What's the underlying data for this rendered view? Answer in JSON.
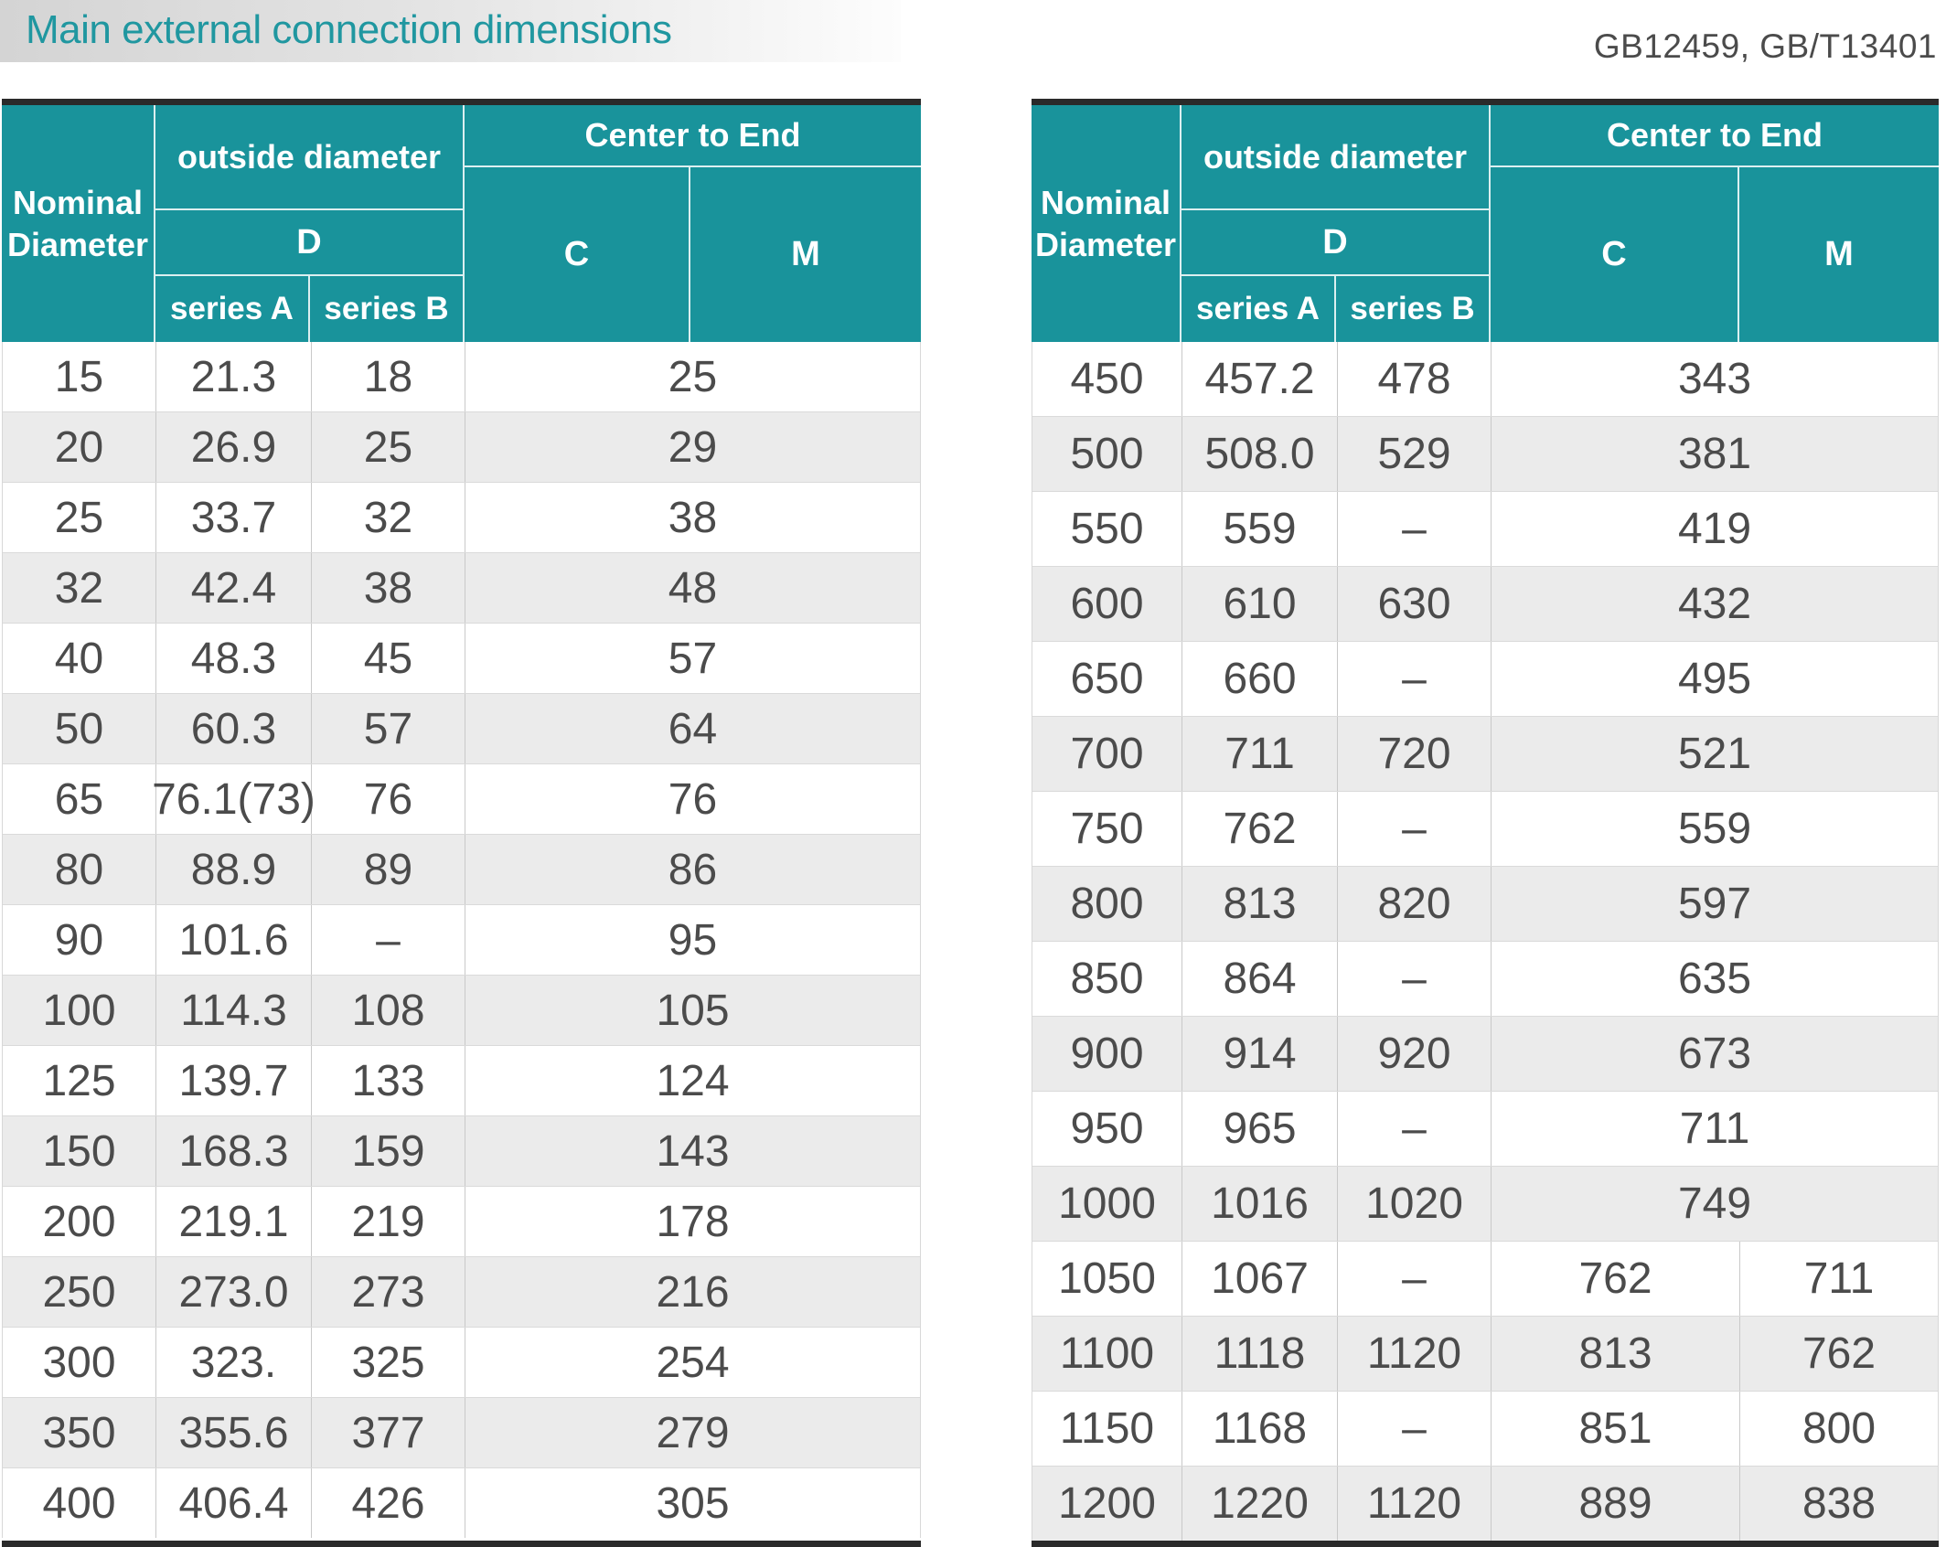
{
  "page": {
    "title": "Main external connection dimensions",
    "standards": "GB12459, GB/T13401"
  },
  "colors": {
    "header_teal": "#19939B",
    "title_teal": "#2097A0",
    "row_alt_gray": "#EBEBEB",
    "table_border_dark": "#2A2A2A",
    "data_text": "#4B4B4B"
  },
  "table_header": {
    "nominal_diameter": "Nominal Diameter",
    "outside_diameter": "outside diameter",
    "d": "D",
    "series_a": "series A",
    "series_b": "series B",
    "center_to_end": "Center to End",
    "c": "C",
    "m": "M"
  },
  "tables": [
    {
      "name": "left",
      "rows": [
        {
          "nd": "15",
          "a": "21.3",
          "b": "18",
          "cm": "25"
        },
        {
          "nd": "20",
          "a": "26.9",
          "b": "25",
          "cm": "29"
        },
        {
          "nd": "25",
          "a": "33.7",
          "b": "32",
          "cm": "38"
        },
        {
          "nd": "32",
          "a": "42.4",
          "b": "38",
          "cm": "48"
        },
        {
          "nd": "40",
          "a": "48.3",
          "b": "45",
          "cm": "57"
        },
        {
          "nd": "50",
          "a": "60.3",
          "b": "57",
          "cm": "64"
        },
        {
          "nd": "65",
          "a": "76.1(73)",
          "b": "76",
          "cm": "76"
        },
        {
          "nd": "80",
          "a": "88.9",
          "b": "89",
          "cm": "86"
        },
        {
          "nd": "90",
          "a": "101.6",
          "b": "–",
          "cm": "95"
        },
        {
          "nd": "100",
          "a": "114.3",
          "b": "108",
          "cm": "105"
        },
        {
          "nd": "125",
          "a": "139.7",
          "b": "133",
          "cm": "124"
        },
        {
          "nd": "150",
          "a": "168.3",
          "b": "159",
          "cm": "143"
        },
        {
          "nd": "200",
          "a": "219.1",
          "b": "219",
          "cm": "178"
        },
        {
          "nd": "250",
          "a": "273.0",
          "b": "273",
          "cm": "216"
        },
        {
          "nd": "300",
          "a": "323.",
          "b": "325",
          "cm": "254"
        },
        {
          "nd": "350",
          "a": "355.6",
          "b": "377",
          "cm": "279"
        },
        {
          "nd": "400",
          "a": "406.4",
          "b": "426",
          "cm": "305"
        }
      ]
    },
    {
      "name": "right",
      "rows": [
        {
          "nd": "450",
          "a": "457.2",
          "b": "478",
          "cm": "343"
        },
        {
          "nd": "500",
          "a": "508.0",
          "b": "529",
          "cm": "381"
        },
        {
          "nd": "550",
          "a": "559",
          "b": "–",
          "cm": "419"
        },
        {
          "nd": "600",
          "a": "610",
          "b": "630",
          "cm": "432"
        },
        {
          "nd": "650",
          "a": "660",
          "b": "–",
          "cm": "495"
        },
        {
          "nd": "700",
          "a": "711",
          "b": "720",
          "cm": "521"
        },
        {
          "nd": "750",
          "a": "762",
          "b": "–",
          "cm": "559"
        },
        {
          "nd": "800",
          "a": "813",
          "b": "820",
          "cm": "597"
        },
        {
          "nd": "850",
          "a": "864",
          "b": "–",
          "cm": "635"
        },
        {
          "nd": "900",
          "a": "914",
          "b": "920",
          "cm": "673"
        },
        {
          "nd": "950",
          "a": "965",
          "b": "–",
          "cm": "711"
        },
        {
          "nd": "1000",
          "a": "1016",
          "b": "1020",
          "cm": "749"
        },
        {
          "nd": "1050",
          "a": "1067",
          "b": "–",
          "c": "762",
          "m": "711"
        },
        {
          "nd": "1100",
          "a": "1118",
          "b": "1120",
          "c": "813",
          "m": "762"
        },
        {
          "nd": "1150",
          "a": "1168",
          "b": "–",
          "c": "851",
          "m": "800"
        },
        {
          "nd": "1200",
          "a": "1220",
          "b": "1120",
          "c": "889",
          "m": "838"
        }
      ]
    }
  ]
}
